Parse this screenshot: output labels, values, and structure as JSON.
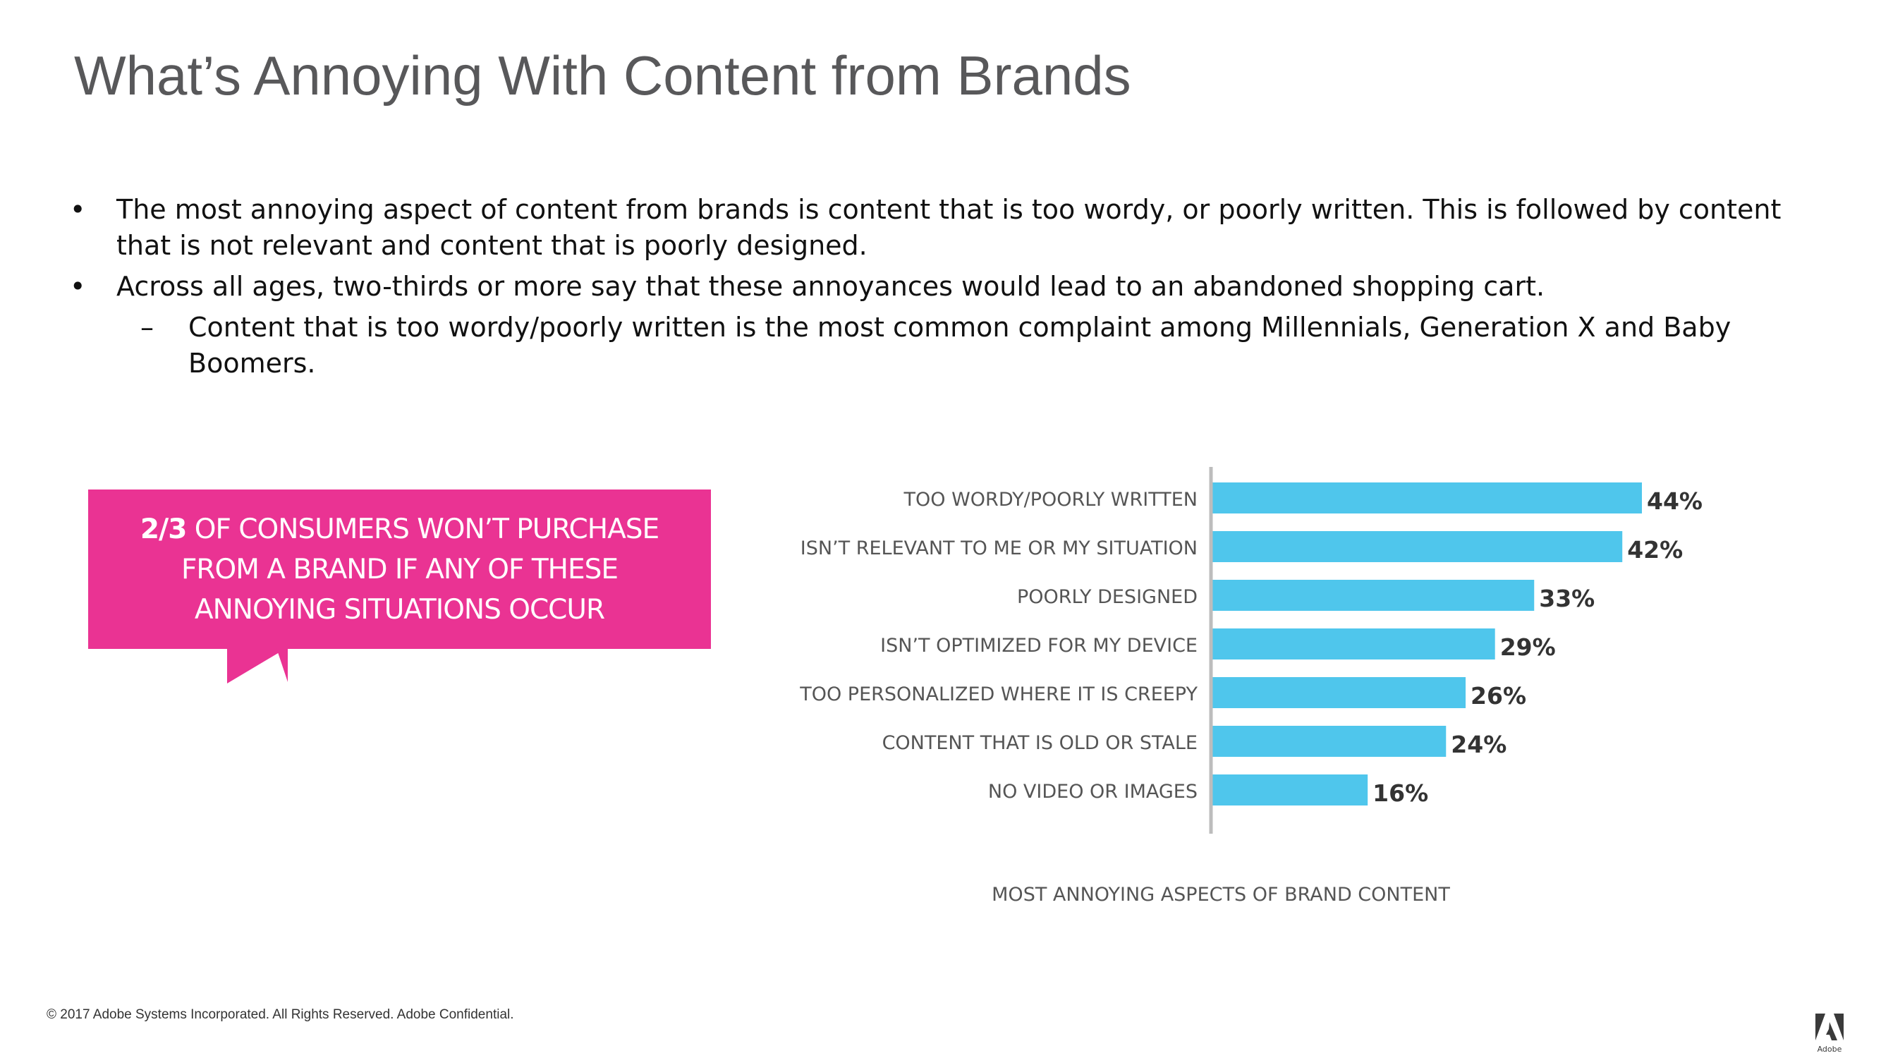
{
  "title": "What’s Annoying With Content from Brands",
  "bullets": [
    {
      "level": 1,
      "marker": "•",
      "text": "The most annoying aspect of content from brands is content that is too wordy, or poorly written. This is followed by content that is not relevant and content that is poorly designed."
    },
    {
      "level": 1,
      "marker": "•",
      "text": "Across all ages, two-thirds or more say that these annoyances would lead to an abandoned shopping cart."
    },
    {
      "level": 2,
      "marker": "–",
      "text": "Content that is too wordy/poorly written is the most common complaint among Millennials, Generation X and Baby Boomers."
    }
  ],
  "callout": {
    "highlight": "2/3",
    "text": " OF CONSUMERS WON’T PURCHASE FROM A BRAND IF ANY OF THESE ANNOYING SITUATIONS OCCUR",
    "color": "#ea3393"
  },
  "chart_data": {
    "type": "bar",
    "orientation": "horizontal",
    "title": "",
    "xlabel": "MOST ANNOYING ASPECTS OF BRAND CONTENT",
    "ylabel": "",
    "categories": [
      "TOO WORDY/POORLY WRITTEN",
      "ISN’T RELEVANT TO ME OR MY SITUATION",
      "POORLY DESIGNED",
      "ISN’T OPTIMIZED FOR MY DEVICE",
      "TOO PERSONALIZED WHERE IT IS CREEPY",
      "CONTENT THAT IS OLD OR STALE",
      "NO VIDEO OR IMAGES"
    ],
    "values": [
      44,
      42,
      33,
      29,
      26,
      24,
      16
    ],
    "labels": [
      "44%",
      "42%",
      "33%",
      "29%",
      "26%",
      "24%",
      "16%"
    ],
    "unit": "%",
    "xlim": [
      0,
      44
    ],
    "bar_color": "#4fc6ec",
    "axis_color": "#bdbdbd",
    "grid": false,
    "legend": "none"
  },
  "footer": "© 2017 Adobe Systems Incorporated.  All Rights Reserved.  Adobe Confidential.",
  "logo": {
    "icon": "adobe-logo-icon",
    "wordmark": "Adobe"
  }
}
